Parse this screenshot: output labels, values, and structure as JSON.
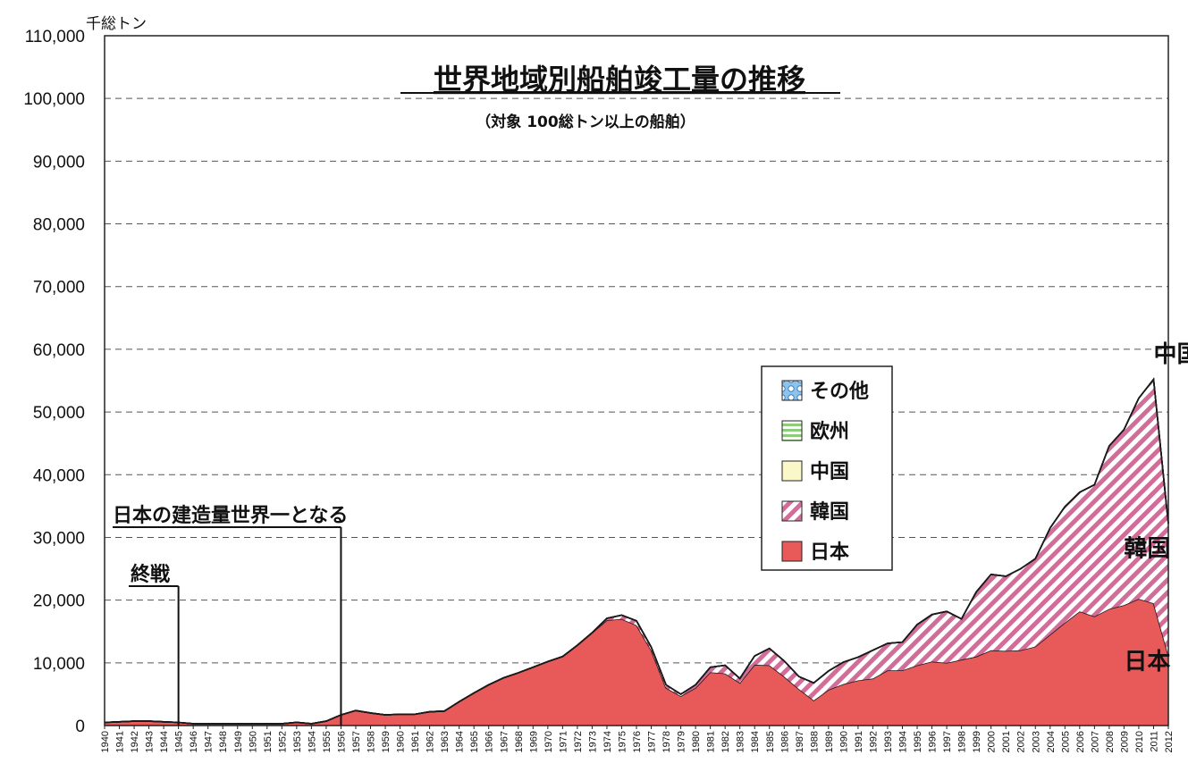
{
  "chart_data": {
    "type": "area",
    "stacked": true,
    "title": "世界地域別船舶竣工量の推移",
    "subtitle": "（対象 100総トン以上の船舶）",
    "ylabel": "千総トン",
    "xlabel": "",
    "ylim": [
      0,
      110000
    ],
    "yticks": [
      0,
      10000,
      20000,
      30000,
      40000,
      50000,
      60000,
      70000,
      80000,
      90000,
      100000,
      110000
    ],
    "ytick_labels": [
      "0",
      "10,000",
      "20,000",
      "30,000",
      "40,000",
      "50,000",
      "60,000",
      "70,000",
      "80,000",
      "90,000",
      "100,000",
      "110,000"
    ],
    "grid": "horizontal dashed",
    "legend_position": "center-right",
    "x": [
      1940,
      1941,
      1942,
      1943,
      1944,
      1945,
      1946,
      1947,
      1948,
      1949,
      1950,
      1951,
      1952,
      1953,
      1954,
      1955,
      1956,
      1957,
      1958,
      1959,
      1960,
      1961,
      1962,
      1963,
      1964,
      1965,
      1966,
      1967,
      1968,
      1969,
      1970,
      1971,
      1972,
      1973,
      1974,
      1975,
      1976,
      1977,
      1978,
      1979,
      1980,
      1981,
      1982,
      1983,
      1984,
      1985,
      1986,
      1987,
      1988,
      1989,
      1990,
      1991,
      1992,
      1993,
      1994,
      1995,
      1996,
      1997,
      1998,
      1999,
      2000,
      2001,
      2002,
      2003,
      2004,
      2005,
      2006,
      2007,
      2008,
      2009,
      2010,
      2011,
      2012
    ],
    "x_tick_labels": [
      "1940",
      "1941",
      "1942",
      "1943",
      "1944",
      "1945",
      "1946",
      "1947",
      "1948",
      "1949",
      "1950",
      "1951",
      "1952",
      "1953",
      "1954",
      "1955",
      "1956",
      "1957",
      "1958",
      "1959",
      "1960",
      "1961",
      "1962",
      "1963",
      "1964",
      "1965",
      "1966",
      "1967",
      "1968",
      "1969",
      "1970",
      "1971",
      "1972",
      "1973",
      "1974",
      "1975",
      "1976",
      "1977",
      "1978",
      "1979",
      "1980",
      "1981",
      "1982",
      "1983",
      "1984",
      "1985",
      "1986",
      "1987",
      "1988",
      "1989",
      "1990",
      "1991",
      "1992",
      "1993",
      "1994",
      "1995",
      "1996",
      "1997",
      "1998",
      "1999",
      "2000",
      "2001",
      "2002",
      "2003",
      "2004",
      "2005",
      "2006",
      "2007",
      "2008",
      "2009",
      "2010",
      "2011",
      "2012"
    ],
    "series": [
      {
        "name": "日本",
        "color": "#e8595a",
        "pattern": "solid",
        "values": [
          500,
          600,
          700,
          700,
          600,
          500,
          300,
          300,
          300,
          300,
          300,
          300,
          300,
          500,
          300,
          700,
          1700,
          2400,
          2000,
          1700,
          1800,
          1800,
          2200,
          2300,
          3800,
          5200,
          6500,
          7600,
          8400,
          9300,
          10200,
          11000,
          12800,
          14800,
          16800,
          17000,
          16000,
          12000,
          6000,
          4700,
          6000,
          8500,
          8300,
          6800,
          9700,
          9600,
          7800,
          5800,
          4000,
          5700,
          6600,
          7200,
          7500,
          8800,
          8800,
          9600,
          10200,
          10000,
          10500,
          11000,
          12000,
          11900,
          12000,
          12600,
          14500,
          16400,
          18200,
          17400,
          18600,
          19200,
          20200,
          19500,
          11200
        ]
      },
      {
        "name": "韓国",
        "color": "#d06a95",
        "pattern": "diagonal",
        "values": [
          0,
          0,
          0,
          0,
          0,
          0,
          0,
          0,
          0,
          0,
          0,
          0,
          0,
          0,
          0,
          0,
          0,
          0,
          0,
          0,
          0,
          0,
          0,
          0,
          0,
          0,
          0,
          0,
          0,
          0,
          0,
          0,
          0,
          0,
          300,
          600,
          700,
          500,
          500,
          300,
          500,
          800,
          1300,
          700,
          1400,
          2700,
          2500,
          2000,
          2800,
          3000,
          3500,
          3700,
          4500,
          4300,
          4500,
          6500,
          7500,
          8200,
          6500,
          10300,
          12100,
          11900,
          13000,
          14000,
          17000,
          18500,
          19000,
          21000,
          26000,
          28000,
          32000,
          35700,
          21000
        ]
      },
      {
        "name": "中国",
        "color": "#faf8c8",
        "pattern": "solid",
        "values": [
          0,
          0,
          0,
          0,
          0,
          0,
          0,
          0,
          0,
          0,
          0,
          0,
          0,
          0,
          0,
          0,
          0,
          0,
          0,
          0,
          0,
          0,
          0,
          0,
          0,
          0,
          0,
          0,
          0,
          0,
          0,
          0,
          0,
          0,
          0,
          0,
          0,
          0,
          0,
          0,
          0,
          0,
          0,
          0,
          0,
          0,
          0,
          0,
          0,
          0,
          0,
          0,
          0,
          0,
          0,
          0,
          0,
          0,
          0,
          0,
          0,
          0,
          0,
          0,
          0,
          0,
          0,
          0,
          0,
          0,
          0,
          0,
          0
        ]
      },
      {
        "name": "欧州",
        "color": "#9fd48e",
        "pattern": "horizontal",
        "values": [
          0,
          0,
          0,
          0,
          0,
          0,
          0,
          0,
          0,
          0,
          0,
          0,
          0,
          0,
          0,
          0,
          0,
          0,
          0,
          0,
          0,
          0,
          0,
          0,
          0,
          0,
          0,
          0,
          0,
          0,
          0,
          0,
          0,
          0,
          0,
          0,
          0,
          0,
          0,
          0,
          0,
          0,
          0,
          0,
          0,
          0,
          0,
          0,
          0,
          0,
          0,
          0,
          0,
          0,
          0,
          0,
          0,
          0,
          0,
          0,
          0,
          0,
          0,
          0,
          0,
          0,
          0,
          0,
          0,
          0,
          0,
          0,
          0
        ]
      },
      {
        "name": "その他",
        "color": "#7ab4e0",
        "pattern": "dots",
        "values": [
          0,
          0,
          0,
          0,
          0,
          0,
          0,
          0,
          0,
          0,
          0,
          0,
          0,
          0,
          0,
          0,
          0,
          0,
          0,
          0,
          0,
          0,
          0,
          0,
          0,
          0,
          0,
          0,
          0,
          0,
          0,
          0,
          0,
          0,
          0,
          0,
          0,
          0,
          0,
          0,
          0,
          0,
          0,
          0,
          0,
          0,
          0,
          0,
          0,
          0,
          0,
          0,
          0,
          0,
          0,
          0,
          0,
          0,
          0,
          0,
          0,
          0,
          0,
          0,
          0,
          0,
          0,
          0,
          0,
          0,
          0,
          0,
          0
        ]
      }
    ],
    "annotations": [
      {
        "text": "日本の建造量世界一となる",
        "year": 1956
      },
      {
        "text": "終戦",
        "year": 1945
      }
    ],
    "region_labels": [
      {
        "text": "中国",
        "year": 2011,
        "value": 58000
      },
      {
        "text": "韓国",
        "year": 2009,
        "value": 27000
      },
      {
        "text": "日本",
        "year": 2009,
        "value": 9000
      }
    ]
  },
  "legend_items": [
    "その他",
    "欧州",
    "中国",
    "韓国",
    "日本"
  ]
}
